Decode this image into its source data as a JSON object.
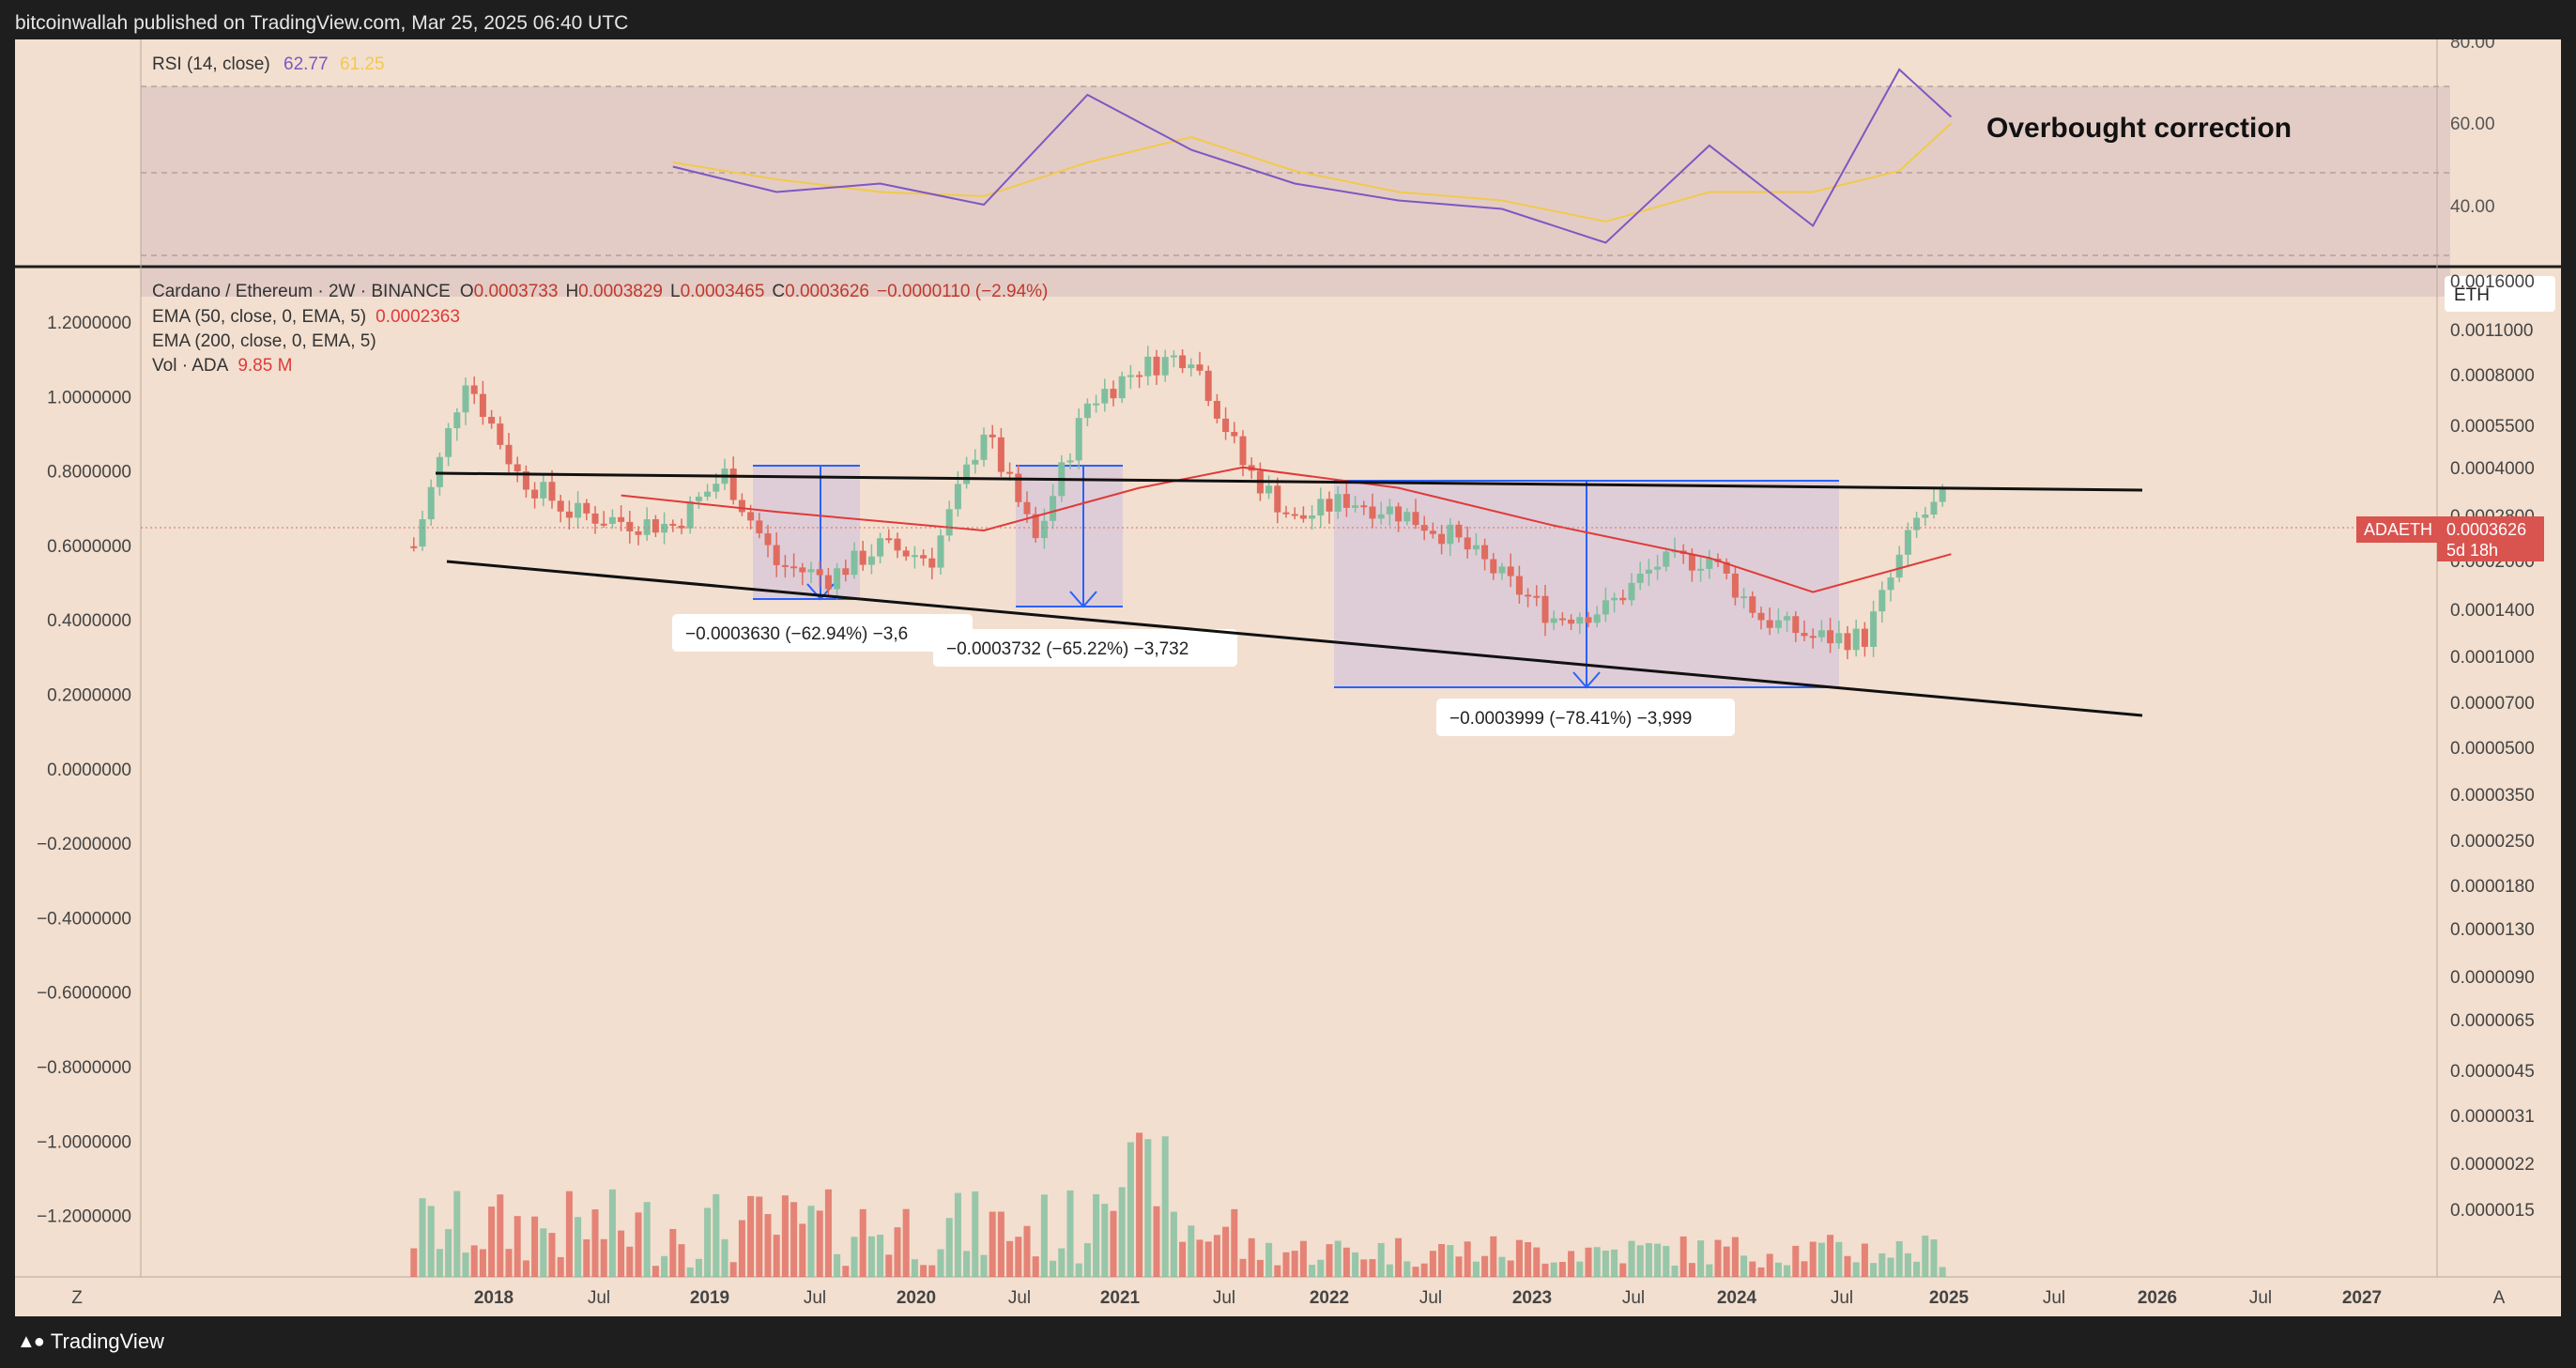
{
  "publisher": "bitcoinwallah published on TradingView.com, Mar 25, 2025 06:40 UTC",
  "brand": "TradingView",
  "colors": {
    "bg": "#f2dfcf",
    "rsi_line": "#7e57c2",
    "rsi_ma": "#f2c94c",
    "ema50": "#e03a3a",
    "up": "#7fbf9f",
    "down": "#e06b5f",
    "measure": "#2962ff",
    "rsi_band": "#dcc3c3",
    "measure_fill": "#d8c8d8"
  },
  "rsi_pane": {
    "legend_title": "RSI (14, close)",
    "rsi_value": "62.77",
    "ma_value": "61.25",
    "ticks": [
      "80.00",
      "60.00",
      "40.00"
    ],
    "annotation": "Overbought correction"
  },
  "main_pane": {
    "header": "Cardano / Ethereum · 2W · BINANCE",
    "ohlc": {
      "o_label": "O",
      "o": "0.0003733",
      "h_label": "H",
      "h": "0.0003829",
      "l_label": "L",
      "l": "0.0003465",
      "c_label": "C",
      "c": "0.0003626",
      "change": "−0.0000110 (−2.94%)"
    },
    "ema50_label": "EMA (50, close, 0, EMA, 5)",
    "ema50_value": "0.0002363",
    "ema200_label": "EMA (200, close, 0, EMA, 5)",
    "vol_label": "Vol · ADA",
    "vol_value": "9.85 M",
    "currency": "ETH",
    "symbol_tag": "ADAETH",
    "price_tag": "0.0003626",
    "countdown": "5d 18h",
    "left_axis": [
      "1.2000000",
      "1.0000000",
      "0.8000000",
      "0.6000000",
      "0.4000000",
      "0.2000000",
      "0.0000000",
      "−0.2000000",
      "−0.4000000",
      "−0.6000000",
      "−0.8000000",
      "−1.0000000",
      "−1.2000000"
    ],
    "right_axis": [
      "0.0016000",
      "0.0011000",
      "0.0008000",
      "0.0005500",
      "0.0004000",
      "0.0002800",
      "0.0002000",
      "0.0001400",
      "0.0001000",
      "0.0000700",
      "0.0000500",
      "0.0000350",
      "0.0000250",
      "0.0000180",
      "0.0000130",
      "0.0000090",
      "0.0000065",
      "0.0000045",
      "0.0000031",
      "0.0000022",
      "0.0000015"
    ],
    "measure_labels": [
      "−0.0003630 (−62.94%) −3,6",
      "−0.0003732 (−65.22%) −3,732",
      "−0.0003999 (−78.41%) −3,999"
    ]
  },
  "time_axis": {
    "labels": [
      "2018",
      "Jul",
      "2019",
      "Jul",
      "2020",
      "Jul",
      "2021",
      "Jul",
      "2022",
      "Jul",
      "2023",
      "Jul",
      "2024",
      "Jul",
      "2025",
      "Jul",
      "2026",
      "Jul",
      "2027"
    ],
    "bold": [
      true,
      false,
      true,
      false,
      true,
      false,
      true,
      false,
      true,
      false,
      true,
      false,
      true,
      false,
      true,
      false,
      true,
      false,
      true
    ],
    "left_button": "Z",
    "right_button": "A"
  },
  "chart_data": {
    "type": "candlestick",
    "title": "Cardano / Ethereum · 2W · BINANCE",
    "scale": "log",
    "x_range": [
      "2017-10",
      "2027-06"
    ],
    "y_range_right": [
      1.5e-06,
      0.0016
    ],
    "series": [
      {
        "name": "ADAETH candles",
        "x": [
          "2017-10",
          "2018-01",
          "2018-04",
          "2018-07",
          "2018-10",
          "2019-01",
          "2019-04",
          "2019-07",
          "2019-10",
          "2020-01",
          "2020-04",
          "2020-07",
          "2020-10",
          "2021-01",
          "2021-04",
          "2021-07",
          "2021-10",
          "2022-01",
          "2022-04",
          "2022-07",
          "2022-10",
          "2023-01",
          "2023-04",
          "2023-07",
          "2023-10",
          "2024-01",
          "2024-04",
          "2024-07",
          "2024-10",
          "2025-01",
          "2025-03"
        ],
        "close": [
          0.00025,
          0.00085,
          0.00042,
          0.00032,
          0.0003,
          0.00029,
          0.00042,
          0.00022,
          0.0002,
          0.00025,
          0.00023,
          0.00058,
          0.00026,
          0.0007,
          0.0009,
          0.001,
          0.00045,
          0.0003,
          0.00035,
          0.00032,
          0.00027,
          0.0002,
          0.00015,
          0.00016,
          0.00022,
          0.00023,
          0.00015,
          0.00013,
          0.00013,
          0.0003,
          0.0003626
        ]
      },
      {
        "name": "EMA (50, close, 0, EMA, 5)",
        "x": [
          "2018-10",
          "2019-07",
          "2020-07",
          "2021-04",
          "2021-10",
          "2022-07",
          "2023-04",
          "2024-01",
          "2024-07",
          "2025-03"
        ],
        "values": [
          0.00036,
          0.00032,
          0.00028,
          0.00038,
          0.00044,
          0.00038,
          0.00029,
          0.00023,
          0.00018,
          0.0002363
        ]
      },
      {
        "name": "RSI (14, close)",
        "x": [
          "2019-01",
          "2019-07",
          "2020-01",
          "2020-07",
          "2021-01",
          "2021-07",
          "2022-01",
          "2022-07",
          "2023-01",
          "2023-07",
          "2024-01",
          "2024-07",
          "2024-12",
          "2025-03"
        ],
        "values": [
          51,
          45,
          47,
          42,
          68,
          55,
          47,
          43,
          41,
          33,
          56,
          37,
          74,
          62.77
        ]
      },
      {
        "name": "RSI MA",
        "x": [
          "2019-01",
          "2019-07",
          "2020-01",
          "2020-07",
          "2021-01",
          "2021-07",
          "2022-01",
          "2022-07",
          "2023-01",
          "2023-07",
          "2024-01",
          "2024-07",
          "2024-12",
          "2025-03"
        ],
        "values": [
          52,
          48,
          45,
          44,
          52,
          58,
          50,
          45,
          43,
          38,
          45,
          45,
          50,
          61.25
        ]
      }
    ],
    "measurements": [
      {
        "change": -0.000363,
        "percent": -62.94
      },
      {
        "change": -0.0003732,
        "percent": -65.22
      },
      {
        "change": -0.0003999,
        "percent": -78.41
      }
    ],
    "rsi_levels": [
      70,
      50,
      30
    ],
    "grid": false
  }
}
